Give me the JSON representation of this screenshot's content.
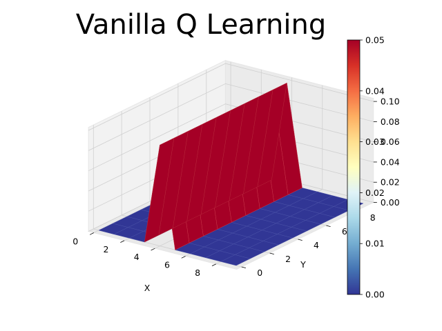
{
  "chart_data": {
    "type": "surface",
    "title": "Vanilla Q Learning",
    "xlabel": "X",
    "ylabel": "Y",
    "zlabel": "",
    "x": [
      0,
      1,
      2,
      3,
      4,
      5,
      6,
      7,
      8,
      9
    ],
    "y": [
      0,
      1,
      2,
      3,
      4,
      5,
      6,
      7,
      8,
      9
    ],
    "z_description": "Value is 0 everywhere except along the line x = 4 where it is 0.1 (peak)",
    "peak_x": 4,
    "peak_value": 0.1,
    "base_value": 0.0,
    "xlim": [
      0,
      9
    ],
    "ylim": [
      0,
      9
    ],
    "zlim": [
      0,
      0.1
    ],
    "x_ticks": [
      0,
      2,
      4,
      6,
      8
    ],
    "y_ticks": [
      0,
      2,
      4,
      6,
      8
    ],
    "z_ticks": [
      "0.00",
      "0.02",
      "0.04",
      "0.06",
      "0.08",
      "0.10"
    ],
    "colormap": "RdYlBu_r",
    "colorbar": {
      "ticks": [
        "0.00",
        "0.01",
        "0.02",
        "0.03",
        "0.04",
        "0.05"
      ],
      "range": [
        0,
        0.05
      ]
    },
    "colors": {
      "low": "#313695",
      "high": "#a50026",
      "pane": "#f2f2f2",
      "grid": "#d0d0d0"
    },
    "grid": true
  }
}
